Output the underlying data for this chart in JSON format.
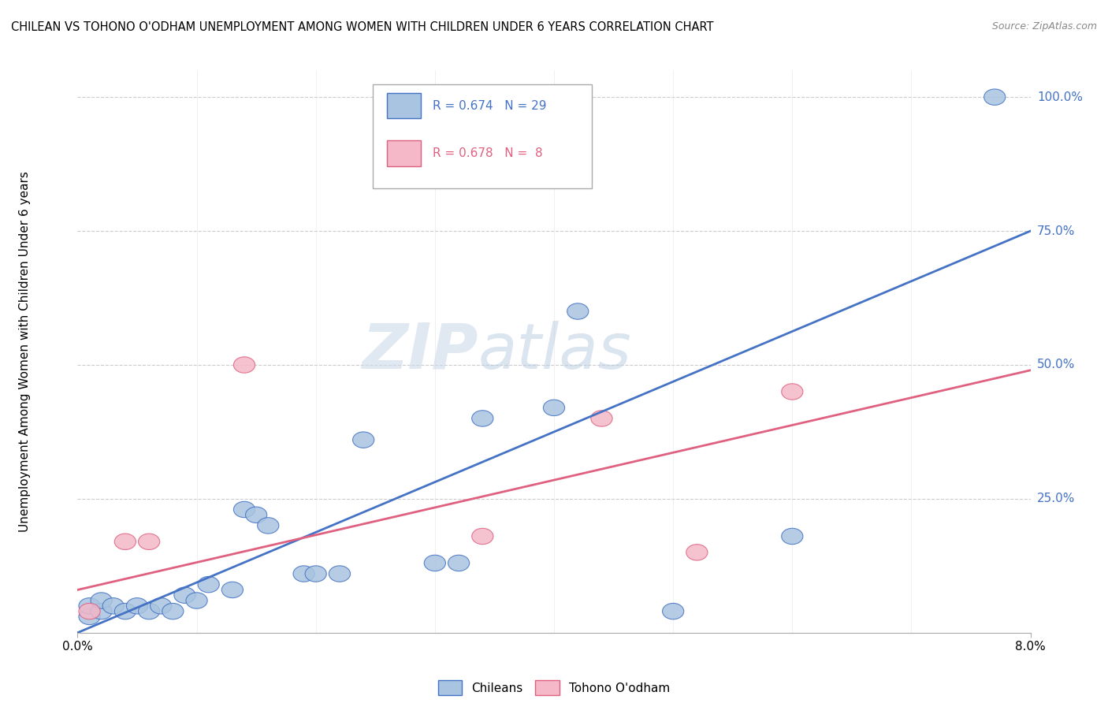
{
  "title": "CHILEAN VS TOHONO O'ODHAM UNEMPLOYMENT AMONG WOMEN WITH CHILDREN UNDER 6 YEARS CORRELATION CHART",
  "source": "Source: ZipAtlas.com",
  "ylabel": "Unemployment Among Women with Children Under 6 years",
  "xlim": [
    0.0,
    0.08
  ],
  "ylim": [
    0.0,
    1.05
  ],
  "ytick_positions": [
    0.0,
    0.25,
    0.5,
    0.75,
    1.0
  ],
  "ytick_labels": [
    "",
    "25.0%",
    "50.0%",
    "75.0%",
    "100.0%"
  ],
  "background_color": "#ffffff",
  "grid_color": "#cccccc",
  "watermark_zip": "ZIP",
  "watermark_atlas": "atlas",
  "chilean_color": "#a8c4e0",
  "chilean_line_color": "#4472c4",
  "tohono_color": "#f4b8c8",
  "tohono_line_color": "#e06080",
  "chilean_R": 0.674,
  "chilean_N": 29,
  "tohono_R": 0.678,
  "tohono_N": 8,
  "chilean_x": [
    0.001,
    0.001,
    0.002,
    0.002,
    0.003,
    0.004,
    0.005,
    0.006,
    0.007,
    0.008,
    0.009,
    0.01,
    0.011,
    0.013,
    0.014,
    0.015,
    0.016,
    0.019,
    0.02,
    0.022,
    0.024,
    0.03,
    0.032,
    0.034,
    0.04,
    0.042,
    0.05,
    0.06,
    0.077
  ],
  "chilean_y": [
    0.03,
    0.05,
    0.04,
    0.06,
    0.05,
    0.04,
    0.05,
    0.04,
    0.05,
    0.04,
    0.07,
    0.06,
    0.09,
    0.08,
    0.23,
    0.22,
    0.2,
    0.11,
    0.11,
    0.11,
    0.36,
    0.13,
    0.13,
    0.4,
    0.42,
    0.6,
    0.04,
    0.18,
    1.0
  ],
  "tohono_x": [
    0.001,
    0.004,
    0.006,
    0.014,
    0.034,
    0.044,
    0.052,
    0.06
  ],
  "tohono_y": [
    0.04,
    0.17,
    0.17,
    0.5,
    0.18,
    0.4,
    0.15,
    0.45
  ],
  "chilean_line_y0": 0.0,
  "chilean_line_y1": 0.75,
  "tohono_line_y0": 0.08,
  "tohono_line_y1": 0.49
}
